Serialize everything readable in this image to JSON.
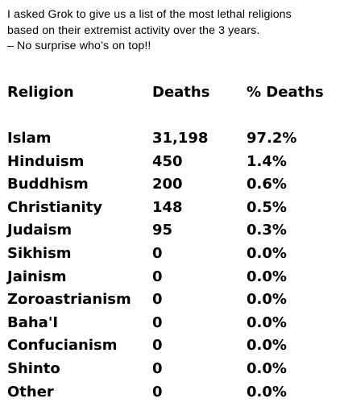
{
  "intro": {
    "lines": [
      "I asked Grok to give us a list of the most lethal religions",
      "based on their extremist activity over the 3 years.",
      "– No surprise  who’s on top!!"
    ]
  },
  "table": {
    "headers": {
      "religion": "Religion",
      "deaths": "Deaths",
      "pct_deaths": "% Deaths"
    },
    "rows": [
      {
        "religion": "Islam",
        "deaths": "31,198",
        "pct_deaths": "97.2%"
      },
      {
        "religion": "Hinduism",
        "deaths": "450",
        "pct_deaths": "1.4%"
      },
      {
        "religion": "Buddhism",
        "deaths": "200",
        "pct_deaths": "0.6%"
      },
      {
        "religion": "Christianity",
        "deaths": "148",
        "pct_deaths": "0.5%"
      },
      {
        "religion": "Judaism",
        "deaths": "95",
        "pct_deaths": "0.3%"
      },
      {
        "religion": "Sikhism",
        "deaths": "0",
        "pct_deaths": "0.0%"
      },
      {
        "religion": "Jainism",
        "deaths": "0",
        "pct_deaths": "0.0%"
      },
      {
        "religion": "Zoroastrianism",
        "deaths": "0",
        "pct_deaths": "0.0%"
      },
      {
        "religion": "Baha'I",
        "deaths": "0",
        "pct_deaths": "0.0%"
      },
      {
        "religion": "Confucianism",
        "deaths": "0",
        "pct_deaths": "0.0%"
      },
      {
        "religion": "Shinto",
        "deaths": "0",
        "pct_deaths": "0.0%"
      },
      {
        "religion": "Other",
        "deaths": "0",
        "pct_deaths": "0.0%"
      }
    ]
  }
}
